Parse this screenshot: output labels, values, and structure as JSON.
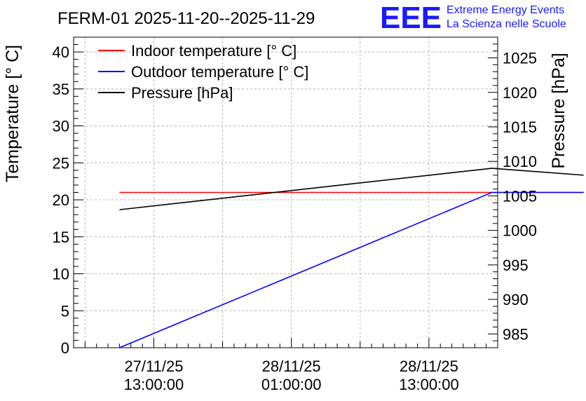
{
  "chart_data": {
    "type": "line",
    "title": "FERM-01 2025-11-20--2025-11-29",
    "ylabel": "Temperature [° C]",
    "y2label": "Pressure [hPa]",
    "xlabel": "",
    "ylim": [
      0,
      42
    ],
    "y2lim": [
      983,
      1028
    ],
    "x_range_hours": [
      -7,
      30
    ],
    "x": [
      -3,
      29.5,
      37.5
    ],
    "x_ticks": [
      {
        "hours": 0,
        "line1": "27/11/25",
        "line2": "13:00:00"
      },
      {
        "hours": 12,
        "line1": "28/11/25",
        "line2": "01:00:00"
      },
      {
        "hours": 24,
        "line1": "28/11/25",
        "line2": "13:00:00"
      }
    ],
    "y_ticks": [
      "0",
      "5",
      "10",
      "15",
      "20",
      "25",
      "30",
      "35",
      "40"
    ],
    "y2_ticks": [
      "985",
      "990",
      "995",
      "1000",
      "1005",
      "1010",
      "1015",
      "1020",
      "1025"
    ],
    "grid": true,
    "legend": "top-left",
    "series": [
      {
        "name": "Indoor temperature [° C]",
        "axis": "left",
        "color": "#ff0000",
        "values": [
          21,
          21,
          21
        ]
      },
      {
        "name": "Outdoor temperature [° C]",
        "axis": "left",
        "color": "#0000ff",
        "values": [
          0,
          21,
          21
        ]
      },
      {
        "name": "Pressure [hPa]",
        "axis": "right",
        "color": "#000000",
        "values": [
          1003,
          1009,
          1008
        ]
      }
    ]
  },
  "logo": {
    "mark": "EEE",
    "line1": "Extreme Energy Events",
    "line2": "La Scienza nelle Scuole",
    "color": "#1a1aff"
  }
}
